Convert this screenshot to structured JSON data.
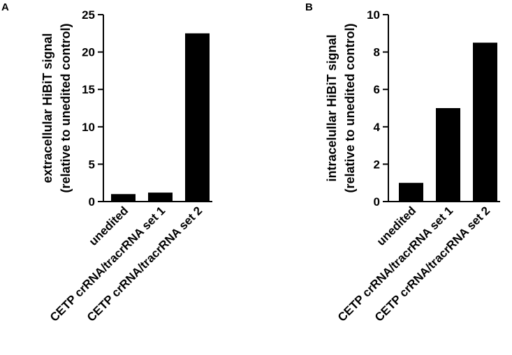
{
  "chart_data": [
    {
      "type": "bar",
      "panel": "A",
      "categories": [
        "unedited",
        "CETP crRNA/tracrRNA set 1",
        "CETP crRNA/tracrRNA set 2"
      ],
      "values": [
        1.0,
        1.2,
        22.5
      ],
      "ylabel_line1": "extracellular HiBiT signal",
      "ylabel_line2": "(relative to unedited control)",
      "ylim": [
        0,
        25
      ],
      "yticks": [
        0,
        5,
        10,
        15,
        20,
        25
      ],
      "grid": false,
      "bar_color": "#000000"
    },
    {
      "type": "bar",
      "panel": "B",
      "categories": [
        "unedited",
        "CETP crRNA/tracrRNA set 1",
        "CETP crRNA/tracrRNA set 2"
      ],
      "values": [
        1.0,
        5.0,
        8.5
      ],
      "ylabel_line1": "intracelullar HiBiT signal",
      "ylabel_line2": "(relative to unedited control)",
      "ylim": [
        0,
        10
      ],
      "yticks": [
        0,
        2,
        4,
        6,
        8,
        10
      ],
      "grid": false,
      "bar_color": "#000000"
    }
  ]
}
